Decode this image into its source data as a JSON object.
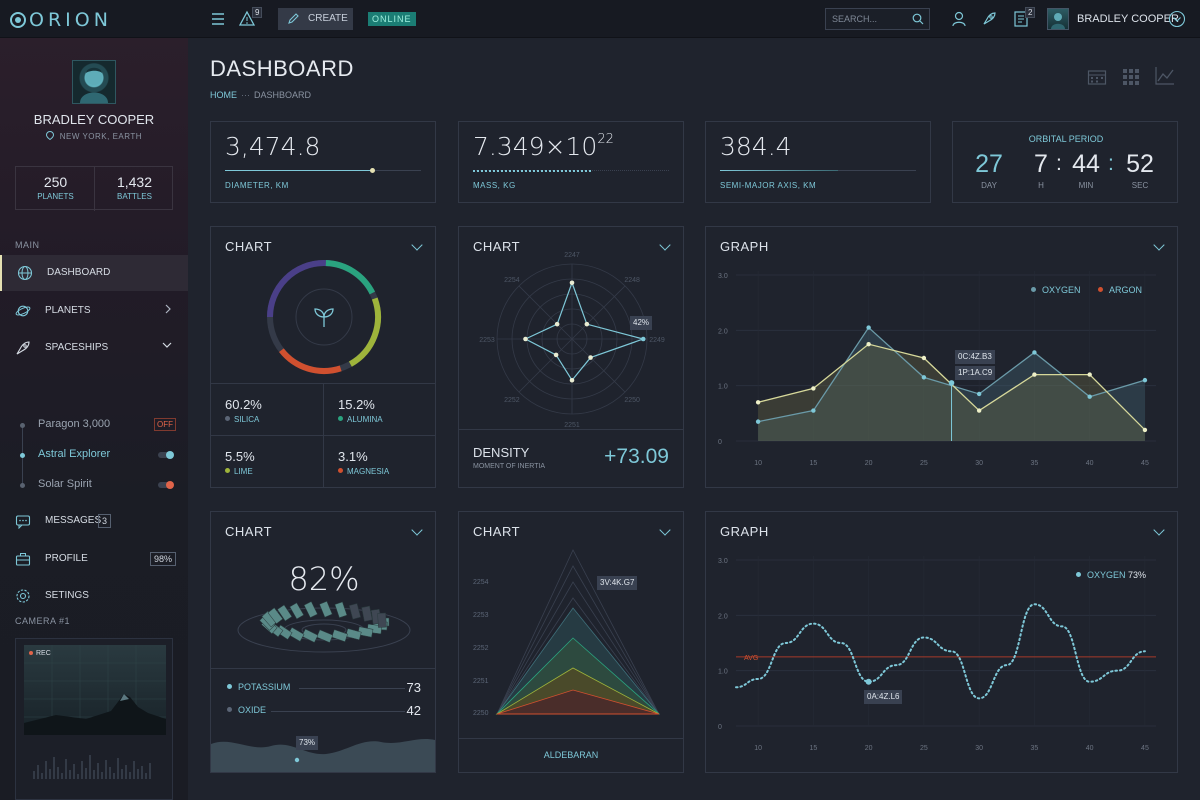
{
  "topbar": {
    "logo": "ORION",
    "alerts_count": "9",
    "create_label": "CREATE",
    "status_label": "ONLINE",
    "search_placeholder": "SEARCH...",
    "notifications_count": "2",
    "user_name": "BRADLEY COOPER"
  },
  "sidebar": {
    "user_name": "BRADLEY COOPER",
    "location": "NEW YORK, EARTH",
    "stats": [
      {
        "value": "250",
        "label": "PLANETS"
      },
      {
        "value": "1,432",
        "label": "BATTLES"
      }
    ],
    "section_main": "MAIN",
    "items": [
      {
        "label": "DASHBOARD"
      },
      {
        "label": "PLANETS"
      },
      {
        "label": "SPACESHIPS"
      },
      {
        "label": "MESSAGES",
        "badge": "3"
      },
      {
        "label": "PROFILE",
        "badge": "98%"
      },
      {
        "label": "SETINGS"
      }
    ],
    "spaceships": [
      {
        "label": "Paragon 3,000",
        "badge": "OFF"
      },
      {
        "label": "Astral Explorer"
      },
      {
        "label": "Solar Spirit"
      }
    ],
    "camera_label": "CAMERA #1",
    "rec_label": "REC"
  },
  "page": {
    "title": "DASHBOARD",
    "breadcrumb": [
      "HOME",
      "DASHBOARD"
    ]
  },
  "stats": [
    {
      "value": "3,474.8",
      "label": "DIAMETER, KM",
      "progress": 0.75
    },
    {
      "value_base": "7.349×10",
      "value_exp": "22",
      "label": "MASS, KG",
      "progress": 0.6
    },
    {
      "value": "384.4",
      "label": "SEMI-MAJOR AXIS, KM",
      "progress": 0.6
    }
  ],
  "orbital": {
    "title": "ORBITAL PERIOD",
    "parts": [
      {
        "value": "27",
        "label": "DAY"
      },
      {
        "value": "7",
        "label": "H"
      },
      {
        "value": "44",
        "label": "MIN"
      },
      {
        "value": "52",
        "label": "SEC"
      }
    ]
  },
  "donut_card": {
    "title": "CHART",
    "metrics": [
      {
        "value": "60.2%",
        "label": "SILICA",
        "color": "#5b6576"
      },
      {
        "value": "15.2%",
        "label": "ALUMINA",
        "color": "#2aa37f"
      },
      {
        "value": "5.5%",
        "label": "LIME",
        "color": "#9eb43b"
      },
      {
        "value": "3.1%",
        "label": "MAGNESIA",
        "color": "#d0502f"
      }
    ]
  },
  "radar_card": {
    "title": "CHART",
    "tag": "42%",
    "axis_labels": [
      "2247",
      "2248",
      "2249",
      "2250",
      "2251",
      "2252",
      "2253",
      "2254"
    ],
    "density_label": "DENSITY",
    "density_sub": "MOMENT OF INERTIA",
    "density_value": "+73.09"
  },
  "graph1": {
    "title": "GRAPH",
    "legend": [
      {
        "label": "OXYGEN",
        "color": "#6a9aa8"
      },
      {
        "label": "ARGON",
        "color": "#d0502f"
      }
    ],
    "tooltip": [
      "0C:4Z.B3",
      "1P:1A.C9"
    ]
  },
  "gauge_card": {
    "title": "CHART",
    "value": "82%",
    "rows": [
      {
        "label": "POTASSIUM",
        "value": "73"
      },
      {
        "label": "OXIDE",
        "value": "42"
      }
    ],
    "mini_tag": "73%"
  },
  "pyramid_card": {
    "title": "CHART",
    "tag": "3V:4K.G7",
    "y_labels": [
      "2254",
      "2253",
      "2252",
      "2251",
      "2250"
    ],
    "footer": "ALDEBARAN"
  },
  "graph2": {
    "title": "GRAPH",
    "legend": [
      {
        "label": "OXYGEN",
        "value": "73%",
        "color": "#7ec8d8"
      }
    ],
    "avg_label": "AVG",
    "tooltip": "0A:4Z.L6"
  },
  "chart_data": [
    {
      "type": "line",
      "title": "GRAPH",
      "x": [
        10,
        15,
        20,
        25,
        30,
        35,
        40,
        45
      ],
      "ylim": [
        0,
        3
      ],
      "yticks": [
        "0",
        "1.0",
        "2.0",
        "3.0"
      ],
      "xticks": [
        "10",
        "15",
        "20",
        "25",
        "30",
        "35",
        "40",
        "45"
      ],
      "series": [
        {
          "name": "OXYGEN",
          "x": [
            10,
            15,
            20,
            25,
            30,
            35,
            40,
            45
          ],
          "values": [
            0.35,
            0.55,
            2.05,
            1.15,
            0.85,
            1.6,
            0.8,
            1.1
          ]
        },
        {
          "name": "ARGON",
          "x": [
            10,
            15,
            20,
            25,
            30,
            35,
            40,
            45
          ],
          "values": [
            0.7,
            0.95,
            1.75,
            1.5,
            0.55,
            1.2,
            1.2,
            0.2
          ]
        }
      ]
    },
    {
      "type": "line",
      "title": "GRAPH",
      "x": [
        10,
        15,
        20,
        25,
        30,
        35,
        40,
        45
      ],
      "ylim": [
        0,
        3
      ],
      "yticks": [
        "0",
        "1.0",
        "2.0",
        "3.0"
      ],
      "xticks": [
        "10",
        "15",
        "20",
        "25",
        "30",
        "35",
        "40",
        "45"
      ],
      "avg": 1.25,
      "series": [
        {
          "name": "OXYGEN",
          "x": [
            8,
            10,
            12.5,
            15,
            17.5,
            20,
            22.5,
            25,
            27.5,
            30,
            32.5,
            35,
            37.5,
            40,
            42.5,
            45
          ],
          "values": [
            0.7,
            0.85,
            1.5,
            1.85,
            1.5,
            0.8,
            1.1,
            1.6,
            1.35,
            0.5,
            1.1,
            2.2,
            1.8,
            0.8,
            1.0,
            1.35
          ]
        }
      ]
    }
  ]
}
